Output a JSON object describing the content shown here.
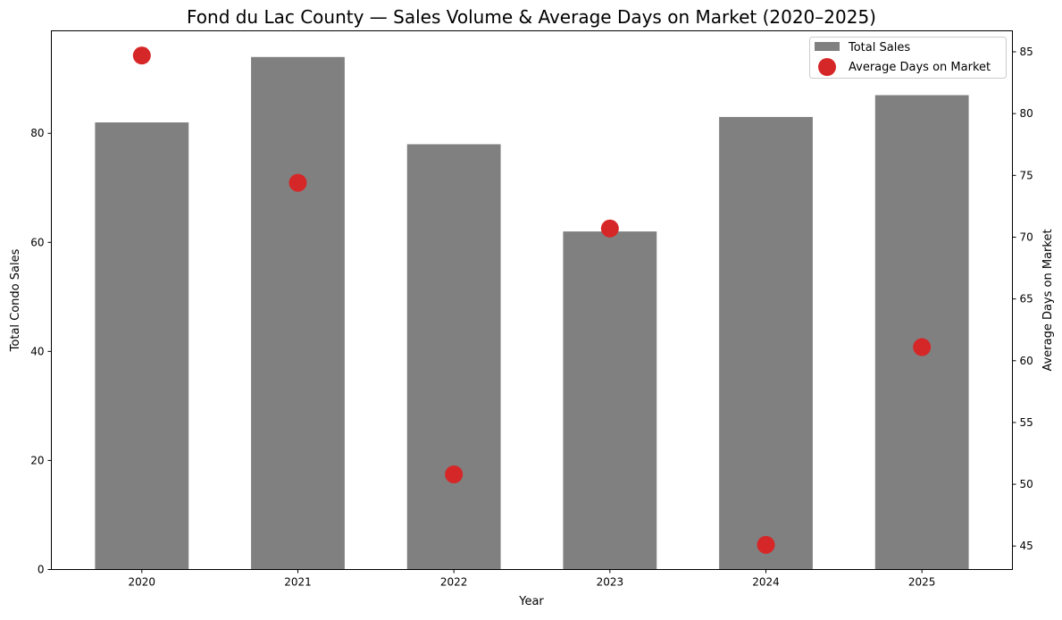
{
  "chart_data": {
    "type": "bar",
    "title": "Fond du Lac County — Sales Volume & Average Days on Market (2020–2025)",
    "xlabel": "Year",
    "ylabel": "Total Condo Sales",
    "y2label": "Average Days on Market",
    "categories": [
      "2020",
      "2021",
      "2022",
      "2023",
      "2024",
      "2025"
    ],
    "series": [
      {
        "name": "Total Sales",
        "type": "bar",
        "axis": "left",
        "color": "#808080",
        "values": [
          82,
          94,
          78,
          62,
          83,
          87
        ]
      },
      {
        "name": "Average Days on Market",
        "type": "scatter",
        "axis": "right",
        "color": "#d62728",
        "values": [
          84.7,
          74.4,
          50.8,
          70.7,
          45.1,
          61.1
        ]
      }
    ],
    "ylim": [
      0,
      98.8
    ],
    "y2lim": [
      43.1,
      86.7
    ],
    "yticks": [
      0,
      20,
      40,
      60,
      80
    ],
    "y2ticks": [
      45,
      50,
      55,
      60,
      65,
      70,
      75,
      80,
      85
    ],
    "grid": false,
    "legend_position": "top-right"
  }
}
